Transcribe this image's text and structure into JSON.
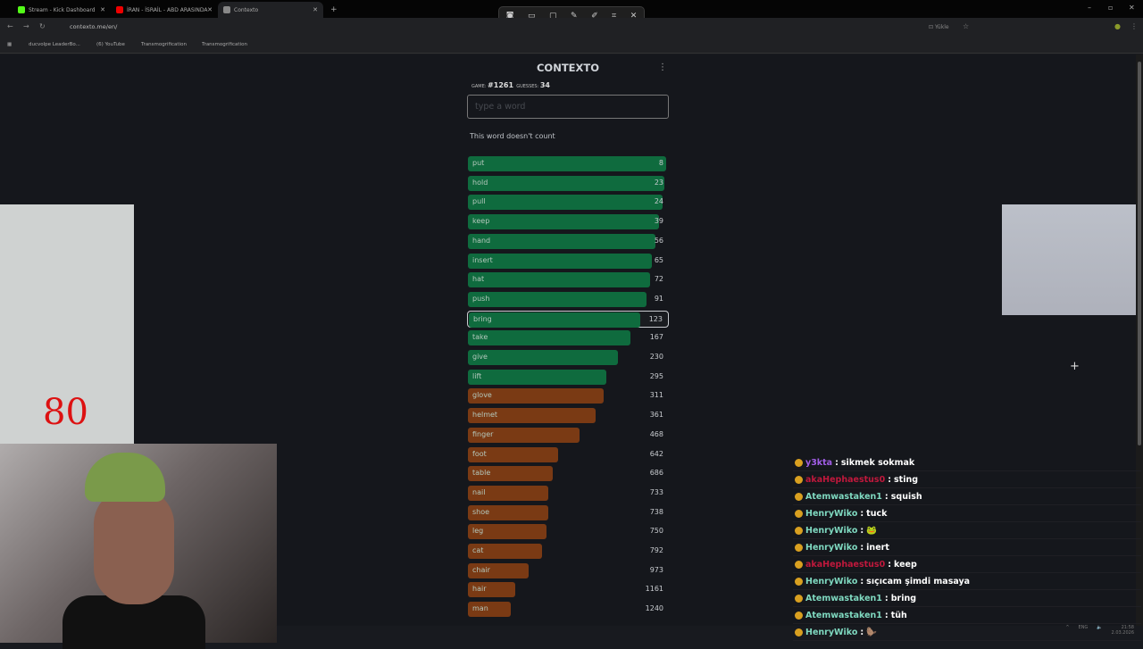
{
  "browser": {
    "tabs": [
      {
        "label": "Stream - Kick Dashboard",
        "color": "#53fc18"
      },
      {
        "label": "İRAN - İSRAİL - ABD ARASINDA",
        "color": "#e00"
      },
      {
        "label": "Contexto",
        "color": "#888"
      }
    ],
    "url": "contexto.me/en/",
    "bookmarks": [
      "ducvolpe LeaderBo...",
      "(6) YouTube",
      "Transmogrification",
      "Transmogrification"
    ],
    "install_label": "Yükle"
  },
  "game": {
    "title": "CONTEXTO",
    "game_label": "GAME:",
    "game_number": "#1261",
    "guesses_label": "GUESSES:",
    "guesses": "34",
    "input_placeholder": "type a word",
    "message": "This word doesn't count",
    "colors": {
      "green": "#0f6b3e",
      "orange": "#7a3a14"
    },
    "guesses_list": [
      {
        "word": "put",
        "rank": "8"
      },
      {
        "word": "hold",
        "rank": "23"
      },
      {
        "word": "pull",
        "rank": "24"
      },
      {
        "word": "keep",
        "rank": "39"
      },
      {
        "word": "hand",
        "rank": "56"
      },
      {
        "word": "insert",
        "rank": "65"
      },
      {
        "word": "hat",
        "rank": "72"
      },
      {
        "word": "push",
        "rank": "91"
      },
      {
        "word": "bring",
        "rank": "123"
      },
      {
        "word": "take",
        "rank": "167"
      },
      {
        "word": "give",
        "rank": "230"
      },
      {
        "word": "lift",
        "rank": "295"
      },
      {
        "word": "glove",
        "rank": "311"
      },
      {
        "word": "helmet",
        "rank": "361"
      },
      {
        "word": "finger",
        "rank": "468"
      },
      {
        "word": "foot",
        "rank": "642"
      },
      {
        "word": "table",
        "rank": "686"
      },
      {
        "word": "nail",
        "rank": "733"
      },
      {
        "word": "shoe",
        "rank": "738"
      },
      {
        "word": "leg",
        "rank": "750"
      },
      {
        "word": "cat",
        "rank": "792"
      },
      {
        "word": "chair",
        "rank": "973"
      },
      {
        "word": "hair",
        "rank": "1161"
      },
      {
        "word": "man",
        "rank": "1240"
      }
    ],
    "highlighted": "bring"
  },
  "overlay": {
    "counter": "80"
  },
  "chat": [
    {
      "user": "y3kta",
      "color": "#a25ee8",
      "text": "sikmek sokmak"
    },
    {
      "user": "akaHephaestus0",
      "color": "#c0183c",
      "text": "sting"
    },
    {
      "user": "Atemwastaken1",
      "color": "#7fd9c0",
      "text": "squish"
    },
    {
      "user": "HenryWiko",
      "color": "#7fd9c0",
      "text": "tuck"
    },
    {
      "user": "HenryWiko",
      "color": "#7fd9c0",
      "text": "🐸"
    },
    {
      "user": "HenryWiko",
      "color": "#7fd9c0",
      "text": "inert"
    },
    {
      "user": "akaHephaestus0",
      "color": "#c0183c",
      "text": "keep"
    },
    {
      "user": "HenryWiko",
      "color": "#7fd9c0",
      "text": "sıçıcam şimdi masaya"
    },
    {
      "user": "Atemwastaken1",
      "color": "#7fd9c0",
      "text": "bring"
    },
    {
      "user": "Atemwastaken1",
      "color": "#7fd9c0",
      "text": "tüh"
    },
    {
      "user": "HenryWiko",
      "color": "#7fd9c0",
      "text": "🦫"
    }
  ],
  "taskbar": {
    "lang": "ENG",
    "time": "21:58",
    "date": "2.03.2026"
  }
}
